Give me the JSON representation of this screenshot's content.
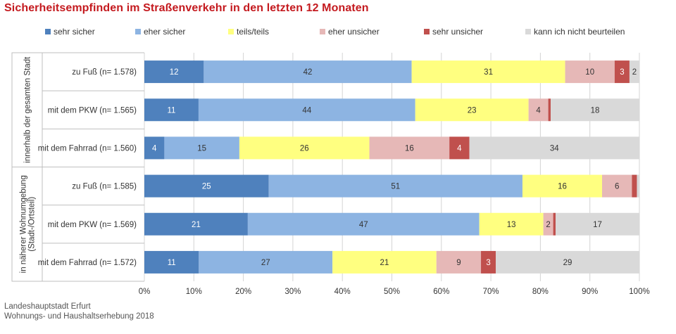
{
  "title": "Sicherheitsempfinden im Straßenverkehr in den letzten 12 Monaten",
  "source": [
    "Landeshauptstadt Erfurt",
    "Wohnungs- und Haushaltserhebung 2018"
  ],
  "colors": {
    "sehr sicher": "#4f81bd",
    "eher sicher": "#8db4e2",
    "teils/teils": "#ffff80",
    "eher unsicher": "#e6b8b7",
    "sehr unsicher": "#c0504d",
    "kann ich nicht beurteilen": "#d9d9d9"
  },
  "chart_data": {
    "type": "bar",
    "orientation": "horizontal",
    "stacked": true,
    "legend_position": "top",
    "grid": true,
    "xlim": [
      0,
      100
    ],
    "x_ticks": [
      "0%",
      "10%",
      "20%",
      "30%",
      "40%",
      "50%",
      "60%",
      "70%",
      "80%",
      "90%",
      "100%"
    ],
    "groups": [
      {
        "label": "innerhalb der gesamten Stadt",
        "rows": [
          0,
          1,
          2
        ]
      },
      {
        "label": "in näherer Wohnumgebung (Stadt-/Ortsteil)",
        "rows": [
          3,
          4,
          5
        ]
      }
    ],
    "categories": [
      "zu Fuß (n= 1.578)",
      "mit dem PKW (n= 1.565)",
      "mit dem Fahrrad (n= 1.560)",
      "zu Fuß (n= 1.585)",
      "mit dem PKW (n= 1.569)",
      "mit dem Fahrrad (n= 1.572)"
    ],
    "series": [
      {
        "name": "sehr sicher",
        "values": [
          12,
          11,
          4,
          25,
          21,
          11
        ]
      },
      {
        "name": "eher sicher",
        "values": [
          42,
          44,
          15,
          51,
          47,
          27
        ]
      },
      {
        "name": "teils/teils",
        "values": [
          31,
          23,
          26,
          16,
          13,
          21
        ]
      },
      {
        "name": "eher unsicher",
        "values": [
          10,
          4,
          16,
          6,
          2,
          9
        ]
      },
      {
        "name": "sehr unsicher",
        "values": [
          3,
          0.5,
          4,
          1,
          0.5,
          3
        ]
      },
      {
        "name": "kann ich nicht beurteilen",
        "values": [
          2,
          18,
          34,
          0.5,
          17,
          29
        ]
      }
    ],
    "data_labels": [
      [
        "12",
        "42",
        "31",
        "10",
        "3",
        "2"
      ],
      [
        "11",
        "44",
        "23",
        "4",
        "",
        "18"
      ],
      [
        "4",
        "15",
        "26",
        "16",
        "4",
        "34"
      ],
      [
        "25",
        "51",
        "16",
        "6",
        "",
        ""
      ],
      [
        "21",
        "47",
        "13",
        "2",
        "",
        "17"
      ],
      [
        "11",
        "27",
        "21",
        "9",
        "3",
        "29"
      ]
    ]
  }
}
